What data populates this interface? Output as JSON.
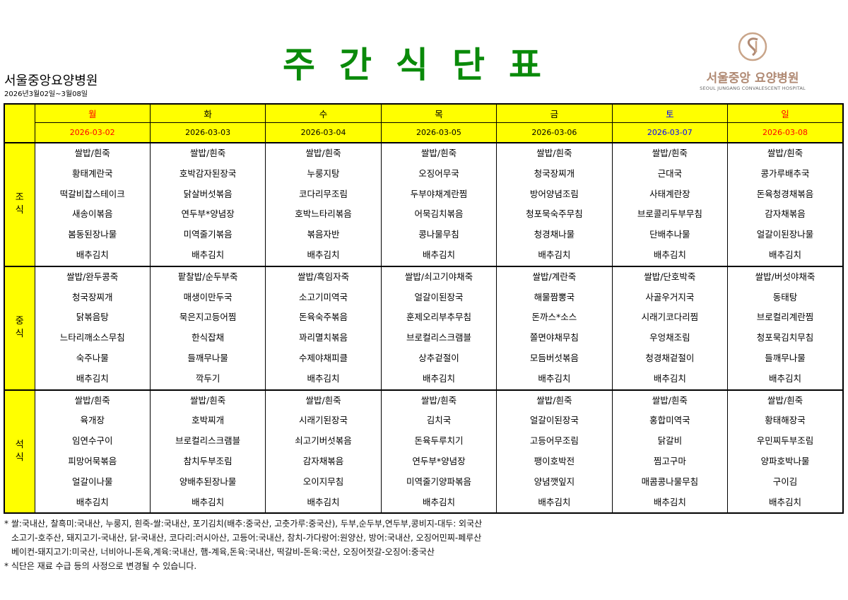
{
  "header": {
    "title": "주간식단표",
    "hospital": "서울중앙요양병원",
    "date_range": "2026년3월02일~3월08일",
    "logo": {
      "kr": "서울중앙 요양병원",
      "en": "SEOUL JUNGANG CONVALESCENT HOSPITAL"
    }
  },
  "colors": {
    "title": "#0a8a0a",
    "header_bg": "#ffff00",
    "weekday": "#000000",
    "saturday": "#0000ff",
    "sunday": "#ff0000",
    "monday": "#ff0000"
  },
  "days": [
    {
      "name": "월",
      "date": "2026-03-02",
      "color": "#ff0000"
    },
    {
      "name": "화",
      "date": "2026-03-03",
      "color": "#000000"
    },
    {
      "name": "수",
      "date": "2026-03-04",
      "color": "#000000"
    },
    {
      "name": "목",
      "date": "2026-03-05",
      "color": "#000000"
    },
    {
      "name": "금",
      "date": "2026-03-06",
      "color": "#000000"
    },
    {
      "name": "토",
      "date": "2026-03-07",
      "color": "#0000ff"
    },
    {
      "name": "일",
      "date": "2026-03-08",
      "color": "#ff0000"
    }
  ],
  "meals": [
    {
      "label": [
        "조",
        "식"
      ],
      "menus": [
        [
          "쌀밥/흰죽",
          "황태계란국",
          "떡갈비찹스테이크",
          "새송이볶음",
          "봄동된장나물",
          "배추김치"
        ],
        [
          "쌀밥/흰죽",
          "호박감자된장국",
          "닭살버섯볶음",
          "연두부*양념장",
          "미역줄기볶음",
          "배추김치"
        ],
        [
          "쌀밥/흰죽",
          "누룽지탕",
          "코다리무조림",
          "호박느타리볶음",
          "볶음자반",
          "배추김치"
        ],
        [
          "쌀밥/흰죽",
          "오징어무국",
          "두부야채계란찜",
          "어묵김치볶음",
          "콩나물무침",
          "배추김치"
        ],
        [
          "쌀밥/흰죽",
          "청국장찌개",
          "방어양념조림",
          "청포묵숙주무침",
          "청경채나물",
          "배추김치"
        ],
        [
          "쌀밥/흰죽",
          "근대국",
          "사태계란장",
          "브로콜리두부무침",
          "단배추나물",
          "배추김치"
        ],
        [
          "쌀밥/흰죽",
          "콩가루배추국",
          "돈육청경채볶음",
          "감자채볶음",
          "얼갈이된장나물",
          "배추김치"
        ]
      ]
    },
    {
      "label": [
        "중",
        "식"
      ],
      "menus": [
        [
          "쌀밥/완두콩죽",
          "청국장찌개",
          "닭볶음탕",
          "느타리깨소스무침",
          "숙주나물",
          "배추김치"
        ],
        [
          "팥찰밥/순두부죽",
          "매생이만두국",
          "묵은지고등어찜",
          "한식잡채",
          "들깨무나물",
          "깍두기"
        ],
        [
          "쌀밥/흑임자죽",
          "소고기미역국",
          "돈육숙주볶음",
          "꽈리멸치볶음",
          "수제야채피클",
          "배추김치"
        ],
        [
          "쌀밥/쇠고기야채죽",
          "얼갈이된장국",
          "훈제오리부추무침",
          "브로컬리스크램블",
          "상추겉절이",
          "배추김치"
        ],
        [
          "쌀밥/계란죽",
          "해물짬뽕국",
          "돈까스*소스",
          "쫄면야채무침",
          "모듬버섯볶음",
          "배추김치"
        ],
        [
          "쌀밥/단호박죽",
          "사골우거지국",
          "시래기코다리찜",
          "우엉채조림",
          "청경채겉절이",
          "배추김치"
        ],
        [
          "쌀밥/버섯야채죽",
          "동태탕",
          "브로컬리계란찜",
          "청포묵김치무침",
          "들깨무나물",
          "배추김치"
        ]
      ]
    },
    {
      "label": [
        "석",
        "식"
      ],
      "menus": [
        [
          "쌀밥/흰죽",
          "육개장",
          "임연수구이",
          "피망어묵볶음",
          "얼갈이나물",
          "배추김치"
        ],
        [
          "쌀밥/흰죽",
          "호박찌개",
          "브로컬리스크램블",
          "참치두부조림",
          "양배추된장나물",
          "배추김치"
        ],
        [
          "쌀밥/흰죽",
          "시래기된장국",
          "쇠고기버섯볶음",
          "감자채볶음",
          "오이지무침",
          "배추김치"
        ],
        [
          "쌀밥/흰죽",
          "김치국",
          "돈육두루치기",
          "연두부*양념장",
          "미역줄기양파볶음",
          "배추김치"
        ],
        [
          "쌀밥/흰죽",
          "얼갈이된장국",
          "고등어무조림",
          "팽이호박전",
          "양념깻잎지",
          "배추김치"
        ],
        [
          "쌀밥/흰죽",
          "홍합미역국",
          "닭갈비",
          "찜고구마",
          "매콤콩나물무침",
          "배추김치"
        ],
        [
          "쌀밥/흰죽",
          "황태해장국",
          "우민찌두부조림",
          "양파호박나물",
          "구이김",
          "배추김치"
        ]
      ]
    }
  ],
  "notes": [
    "* 쌀:국내산, 찰흑미:국내산, 누룽지, 흰죽-쌀:국내산, 포기김치(배추:중국산, 고춧가루:중국산), 두부,순두부,연두부,콩비지-대두: 외국산",
    "소고기-호주산, 돼지고기-국내산, 닭-국내산, 코다리:러시아산, 고등어:국내산, 참치-가다랑어:원양산, 방어:국내산, 오징어민찌-페루산",
    "베이컨-돼지고기:미국산, 너비아니-돈육,계육:국내산, 햄-계육,돈육:국내산, 떡갈비-돈육:국산, 오징어젓갈-오징어:중국산",
    "* 식단은 재료 수급 등의 사정으로 변경될 수 있습니다."
  ]
}
